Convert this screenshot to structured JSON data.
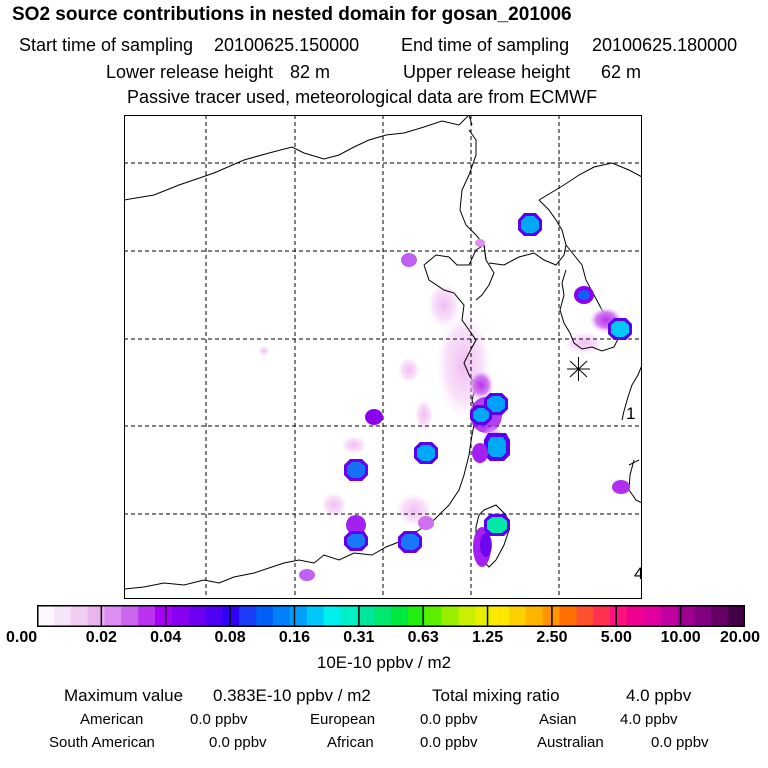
{
  "header": {
    "title": "SO2 source contributions in nested domain for gosan_201006",
    "start_label": "Start time of sampling",
    "start_value": "20100625.150000",
    "end_label": "End time of sampling",
    "end_value": "20100625.180000",
    "lower_label": "Lower release height",
    "lower_value": "82 m",
    "upper_label": "Upper release height",
    "upper_value": "62 m",
    "note": "Passive tracer used, meteorological data are from ECMWF"
  },
  "map": {
    "corner_labels": [
      "1",
      "4"
    ],
    "receptor_marker": "asterisk-receptor-icon"
  },
  "colorbar": {
    "unit": "10E-10 ppbv / m2",
    "tick_labels": [
      "0.00",
      "0.02",
      "0.04",
      "0.08",
      "0.16",
      "0.31",
      "0.63",
      "1.25",
      "2.50",
      "5.00",
      "10.00",
      "20.00"
    ],
    "colors": [
      "#fdf6fd",
      "#f8e4f8",
      "#f2cdf2",
      "#eab4ef",
      "#dd8ef0",
      "#cc66ee",
      "#bb33f0",
      "#a800f5",
      "#8800f0",
      "#6d00f0",
      "#5000f5",
      "#3000f8",
      "#1c3cf8",
      "#0060f8",
      "#0080fa",
      "#00a0fc",
      "#00c8f8",
      "#00f0f0",
      "#00f0c8",
      "#00e89c",
      "#00e870",
      "#00e840",
      "#20ee10",
      "#5cf000",
      "#98f000",
      "#c8f000",
      "#e8f000",
      "#ffe800",
      "#ffd000",
      "#ffb400",
      "#ff9400",
      "#ff7000",
      "#ff5030",
      "#ff3050",
      "#ff1080",
      "#f00090",
      "#e000a0",
      "#c000a0",
      "#a00090",
      "#800080",
      "#660066",
      "#440044"
    ]
  },
  "summary": {
    "max_label": "Maximum value",
    "max_value": "0.383E-10 ppbv / m2",
    "total_label": "Total mixing ratio",
    "total_value": "4.0 ppbv",
    "regions": [
      {
        "name": "American",
        "value": "0.0 ppbv"
      },
      {
        "name": "European",
        "value": "0.0 ppbv"
      },
      {
        "name": "Asian",
        "value": "4.0 ppbv"
      },
      {
        "name": "South American",
        "value": "0.0 ppbv"
      },
      {
        "name": "African",
        "value": "0.0 ppbv"
      },
      {
        "name": "Australian",
        "value": "0.0 ppbv"
      }
    ]
  }
}
